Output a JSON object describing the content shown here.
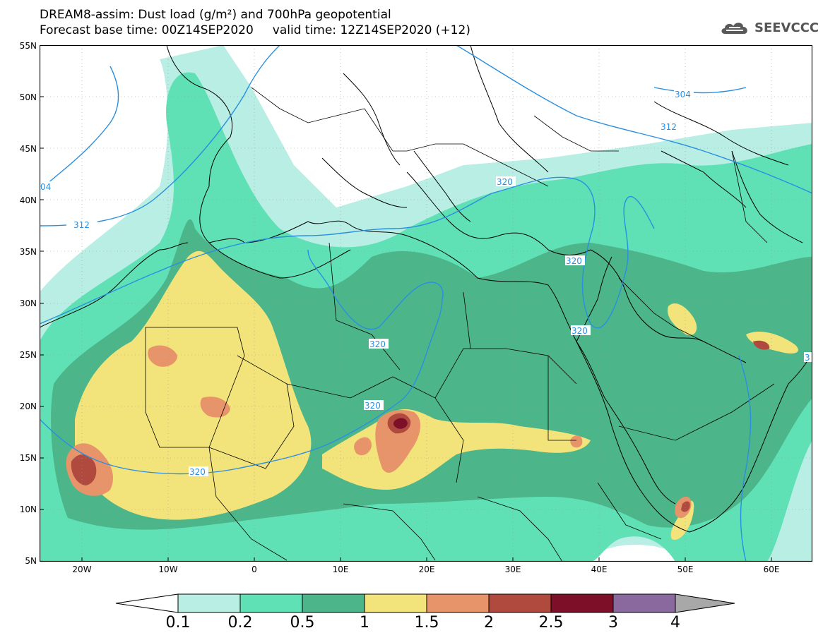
{
  "title": {
    "line1": "DREAM8-assim: Dust load (g/m²) and 700hPa geopotential",
    "line2": "Forecast base time: 00Z14SEP2020     valid time: 12Z14SEP2020 (+12)"
  },
  "logo": {
    "text": "SEEVCCC",
    "icon": "cloud-icon"
  },
  "axes": {
    "lat_labels": [
      "55N",
      "50N",
      "45N",
      "40N",
      "35N",
      "30N",
      "25N",
      "20N",
      "15N",
      "10N",
      "5N"
    ],
    "lon_labels": [
      "20W",
      "10W",
      "0",
      "10E",
      "20E",
      "30E",
      "40E",
      "50E",
      "60E"
    ]
  },
  "contour_labels": [
    "304",
    "312",
    "320",
    "320",
    "320",
    "320",
    "320",
    "320",
    "312",
    "04",
    "3"
  ],
  "colorbar": {
    "labels": [
      "0.1",
      "0.2",
      "0.5",
      "1",
      "1.5",
      "2",
      "2.5",
      "3",
      "4"
    ],
    "colors": [
      "#b8eee4",
      "#5fe0b5",
      "#4cb58a",
      "#f2e47a",
      "#e8946a",
      "#b04a3e",
      "#7d0f28",
      "#8a6a9e",
      "#a8a8a8"
    ]
  },
  "map_colors": {
    "level1": "#b8eee4",
    "level2": "#5fe0b5",
    "level3": "#4cb58a",
    "level4": "#f2e47a",
    "level5": "#e8946a",
    "level6": "#b04a3e",
    "level7": "#7d0f28",
    "contour": "#2a8fe0",
    "coast": "#000000"
  }
}
